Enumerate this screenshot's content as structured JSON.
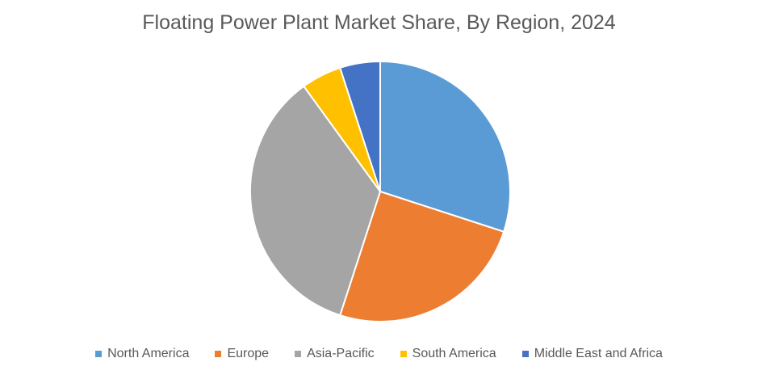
{
  "chart_data": {
    "type": "pie",
    "title": "Floating Power Plant Market Share, By Region, 2024",
    "categories": [
      "North America",
      "Europe",
      "Asia-Pacific",
      "South America",
      "Middle East and Africa"
    ],
    "values": [
      30,
      25,
      35,
      5,
      5
    ],
    "colors": [
      "#5b9bd5",
      "#ed7d31",
      "#a5a5a5",
      "#ffc000",
      "#4472c4"
    ],
    "legend": "bottom"
  }
}
